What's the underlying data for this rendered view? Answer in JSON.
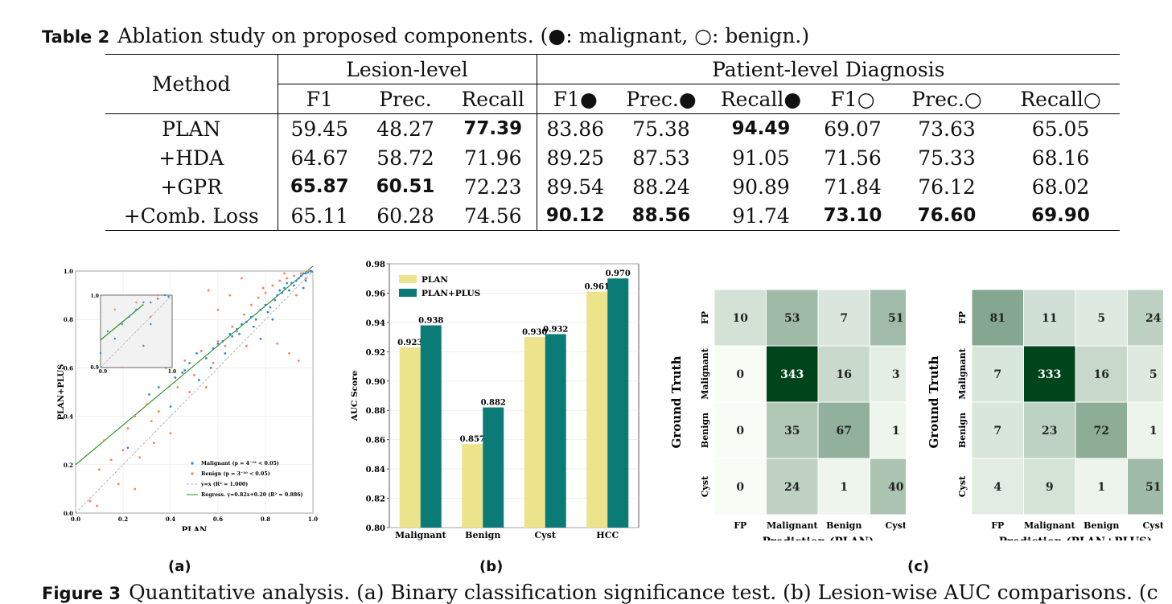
{
  "table": {
    "label": "Table 2",
    "caption": "Ablation study on proposed components. (●: malignant, ○: benign.)",
    "method_header": "Method",
    "group_headers": [
      "Lesion-level",
      "Patient-level Diagnosis"
    ],
    "columns": [
      "F1",
      "Prec.",
      "Recall",
      "F1●",
      "Prec.●",
      "Recall●",
      "F1○",
      "Prec.○",
      "Recall○"
    ],
    "rows": [
      {
        "method": "PLAN",
        "values": [
          "59.45",
          "48.27",
          "77.39",
          "83.86",
          "75.38",
          "94.49",
          "69.07",
          "73.63",
          "65.05"
        ],
        "bold": [
          2,
          5
        ]
      },
      {
        "method": "+HDA",
        "values": [
          "64.67",
          "58.72",
          "71.96",
          "89.25",
          "87.53",
          "91.05",
          "71.56",
          "75.33",
          "68.16"
        ],
        "bold": []
      },
      {
        "method": "+GPR",
        "values": [
          "65.87",
          "60.51",
          "72.23",
          "89.54",
          "88.24",
          "90.89",
          "71.84",
          "76.12",
          "68.02"
        ],
        "bold": [
          0,
          1
        ]
      },
      {
        "method": "+Comb. Loss",
        "values": [
          "65.11",
          "60.28",
          "74.56",
          "90.12",
          "88.56",
          "91.74",
          "73.10",
          "76.60",
          "69.90"
        ],
        "bold": [
          3,
          4,
          6,
          7,
          8
        ]
      }
    ]
  },
  "panel_labels": [
    "(a)",
    "(b)",
    "(c)"
  ],
  "figure_caption": {
    "label": "Figure 3",
    "text": "Quantitative analysis. (a) Binary classification significance test. (b) Lesion-wise AUC comparisons. (c"
  },
  "colors": {
    "malignant": "#2e86de",
    "benign": "#ff7f50",
    "regression": "#1f8f1f",
    "plan_bar": "#ede38a",
    "plus_bar": "#0b7b77"
  },
  "chart_data": [
    {
      "type": "scatter",
      "xlabel": "PLAN",
      "ylabel": "PLAN+PLUS",
      "xlim": [
        0,
        1
      ],
      "ylim": [
        0,
        1
      ],
      "ticks": [
        "0.0",
        "0.2",
        "0.4",
        "0.6",
        "0.8",
        "1.0"
      ],
      "inset": {
        "xlim": [
          0.9,
          1.0
        ],
        "ylim": [
          0.9,
          1.0
        ],
        "ticks": [
          "0.9",
          "1.0"
        ]
      },
      "regression": {
        "slope": 0.82,
        "intercept": 0.2
      },
      "legend": [
        "Malignant (p = 4⁻¹² < 0.05)",
        "Benign (p = 3⁻¹⁰ < 0.05)",
        "y=x (R² = 1.000)",
        "Regress. y=0.82x+0.20 (R² = 0.886)"
      ],
      "legend_position": "lower-right",
      "series": [
        {
          "name": "Malignant",
          "points": [
            [
              0.31,
              0.49
            ],
            [
              0.35,
              0.52
            ],
            [
              0.42,
              0.56
            ],
            [
              0.45,
              0.58
            ],
            [
              0.48,
              0.62
            ],
            [
              0.51,
              0.66
            ],
            [
              0.55,
              0.64
            ],
            [
              0.58,
              0.68
            ],
            [
              0.6,
              0.7
            ],
            [
              0.62,
              0.71
            ],
            [
              0.65,
              0.74
            ],
            [
              0.66,
              0.73
            ],
            [
              0.68,
              0.76
            ],
            [
              0.7,
              0.78
            ],
            [
              0.72,
              0.79
            ],
            [
              0.74,
              0.81
            ],
            [
              0.76,
              0.8
            ],
            [
              0.78,
              0.84
            ],
            [
              0.8,
              0.86
            ],
            [
              0.82,
              0.85
            ],
            [
              0.84,
              0.88
            ],
            [
              0.85,
              0.9
            ],
            [
              0.87,
              0.91
            ],
            [
              0.88,
              0.93
            ],
            [
              0.9,
              0.92
            ],
            [
              0.91,
              0.95
            ],
            [
              0.93,
              0.96
            ],
            [
              0.94,
              0.97
            ],
            [
              0.95,
              0.98
            ],
            [
              0.96,
              0.99
            ],
            [
              0.97,
              0.99
            ],
            [
              0.98,
              0.995
            ],
            [
              0.99,
              1.0
            ],
            [
              0.995,
              0.998
            ],
            [
              0.97,
              0.96
            ],
            [
              0.92,
              0.94
            ],
            [
              0.89,
              0.95
            ],
            [
              0.86,
              0.92
            ],
            [
              0.81,
              0.83
            ],
            [
              0.75,
              0.77
            ],
            [
              0.69,
              0.74
            ],
            [
              0.63,
              0.66
            ],
            [
              0.57,
              0.6
            ],
            [
              0.52,
              0.55
            ],
            [
              0.46,
              0.59
            ],
            [
              0.4,
              0.44
            ],
            [
              0.22,
              0.27
            ],
            [
              0.78,
              0.72
            ],
            [
              0.83,
              0.8
            ],
            [
              0.96,
              0.93
            ]
          ]
        },
        {
          "name": "Benign",
          "points": [
            [
              0.06,
              0.05
            ],
            [
              0.09,
              0.03
            ],
            [
              0.1,
              0.18
            ],
            [
              0.15,
              0.22
            ],
            [
              0.18,
              0.12
            ],
            [
              0.2,
              0.26
            ],
            [
              0.22,
              0.35
            ],
            [
              0.25,
              0.4
            ],
            [
              0.27,
              0.23
            ],
            [
              0.3,
              0.45
            ],
            [
              0.32,
              0.38
            ],
            [
              0.35,
              0.42
            ],
            [
              0.38,
              0.6
            ],
            [
              0.4,
              0.33
            ],
            [
              0.43,
              0.52
            ],
            [
              0.46,
              0.63
            ],
            [
              0.48,
              0.5
            ],
            [
              0.5,
              0.57
            ],
            [
              0.53,
              0.67
            ],
            [
              0.55,
              0.52
            ],
            [
              0.58,
              0.62
            ],
            [
              0.6,
              0.71
            ],
            [
              0.63,
              0.69
            ],
            [
              0.66,
              0.77
            ],
            [
              0.68,
              0.75
            ],
            [
              0.71,
              0.82
            ],
            [
              0.74,
              0.86
            ],
            [
              0.77,
              0.89
            ],
            [
              0.8,
              0.91
            ],
            [
              0.83,
              0.94
            ],
            [
              0.86,
              0.96
            ],
            [
              0.89,
              0.97
            ],
            [
              0.92,
              0.98
            ],
            [
              0.95,
              0.99
            ],
            [
              0.98,
              1.0
            ],
            [
              0.85,
              0.7
            ],
            [
              0.9,
              0.66
            ],
            [
              0.94,
              0.63
            ],
            [
              0.65,
              0.9
            ],
            [
              0.7,
              0.97
            ],
            [
              0.56,
              0.92
            ],
            [
              0.6,
              0.84
            ],
            [
              0.12,
              0.3
            ],
            [
              0.25,
              0.1
            ],
            [
              0.33,
              0.29
            ],
            [
              0.72,
              0.69
            ],
            [
              0.79,
              0.93
            ],
            [
              0.88,
              0.99
            ],
            [
              0.93,
              0.9
            ],
            [
              0.97,
              0.97
            ]
          ]
        }
      ]
    },
    {
      "type": "bar",
      "categories": [
        "Malignant",
        "Benign",
        "Cyst",
        "HCC"
      ],
      "ylabel": "AUC Score",
      "ylim": [
        0.8,
        0.98
      ],
      "yticks": [
        "0.80",
        "0.82",
        "0.84",
        "0.86",
        "0.88",
        "0.90",
        "0.92",
        "0.94",
        "0.96",
        "0.98"
      ],
      "legend_position": "top-left",
      "series": [
        {
          "name": "PLAN",
          "values": [
            0.923,
            0.857,
            0.93,
            0.961
          ],
          "labels": [
            "0.923",
            "0.857",
            "0.930",
            "0.961"
          ]
        },
        {
          "name": "PLAN+PLUS",
          "values": [
            0.938,
            0.882,
            0.932,
            0.97
          ],
          "labels": [
            "0.938",
            "0.882",
            "0.932",
            "0.970"
          ]
        }
      ]
    },
    {
      "type": "heatmap",
      "xlabel": "Prediction (PLAN)",
      "ylabel": "Ground Truth",
      "categories": [
        "FP",
        "Malignant",
        "Benign",
        "Cyst"
      ],
      "matrix": [
        [
          10,
          53,
          7,
          51
        ],
        [
          0,
          343,
          16,
          3
        ],
        [
          0,
          35,
          67,
          1
        ],
        [
          0,
          24,
          1,
          40
        ]
      ]
    },
    {
      "type": "heatmap",
      "xlabel": "Prediction (PLAN+PLUS)",
      "ylabel": "Ground Truth",
      "categories": [
        "FP",
        "Malignant",
        "Benign",
        "Cyst"
      ],
      "matrix": [
        [
          81,
          11,
          5,
          24
        ],
        [
          7,
          333,
          16,
          5
        ],
        [
          7,
          23,
          72,
          1
        ],
        [
          4,
          9,
          1,
          51
        ]
      ]
    }
  ]
}
